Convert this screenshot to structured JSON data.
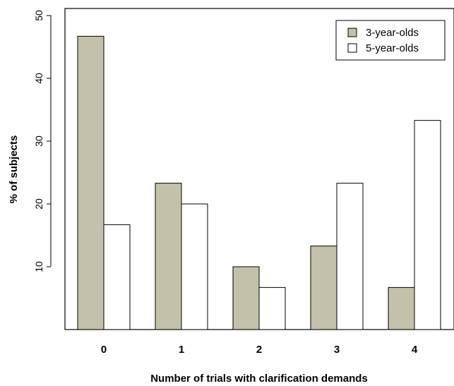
{
  "chart_data": {
    "type": "bar",
    "title": "",
    "xlabel": "Number of trials with clarification demands",
    "ylabel": "% of subjects",
    "categories": [
      "0",
      "1",
      "2",
      "3",
      "4"
    ],
    "series": [
      {
        "name": "3-year-olds",
        "color": "#c4c1aa",
        "values": [
          46.7,
          23.3,
          10.0,
          13.3,
          6.7
        ]
      },
      {
        "name": "5-year-olds",
        "color": "#ffffff",
        "values": [
          16.7,
          20.0,
          6.7,
          23.3,
          33.3
        ]
      }
    ],
    "ylim": [
      0,
      50
    ],
    "yticks": [
      "10",
      "20",
      "30",
      "40",
      "50"
    ],
    "grid": false,
    "legend_position": "top-right"
  }
}
